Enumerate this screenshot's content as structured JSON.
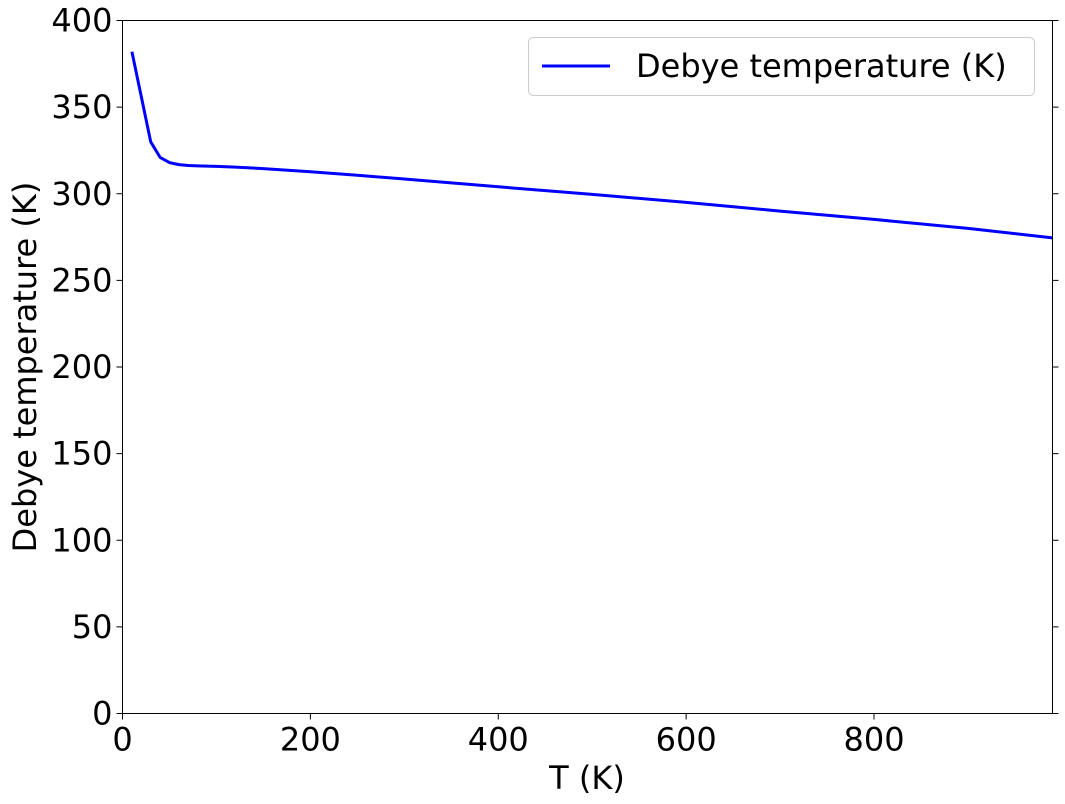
{
  "chart_data": {
    "type": "line",
    "title": "",
    "xlabel": "T (K)",
    "ylabel": "Debye temperature (K)",
    "xlim": [
      0,
      990
    ],
    "ylim": [
      0,
      400
    ],
    "xticks": [
      0,
      200,
      400,
      600,
      800
    ],
    "yticks": [
      0,
      50,
      100,
      150,
      200,
      250,
      300,
      350,
      400
    ],
    "grid": false,
    "legend_position": "top-right",
    "series": [
      {
        "name": "Debye temperature (K)",
        "color": "#0000ff",
        "x": [
          10,
          20,
          30,
          40,
          50,
          60,
          70,
          80,
          100,
          120,
          150,
          200,
          250,
          300,
          400,
          500,
          600,
          700,
          800,
          900,
          990
        ],
        "y": [
          382,
          356,
          330,
          321,
          318,
          316.8,
          316.3,
          316.1,
          315.8,
          315.4,
          314.5,
          312.7,
          310.7,
          308.5,
          304,
          299.6,
          295,
          290,
          285.2,
          280,
          274.5
        ]
      }
    ]
  }
}
